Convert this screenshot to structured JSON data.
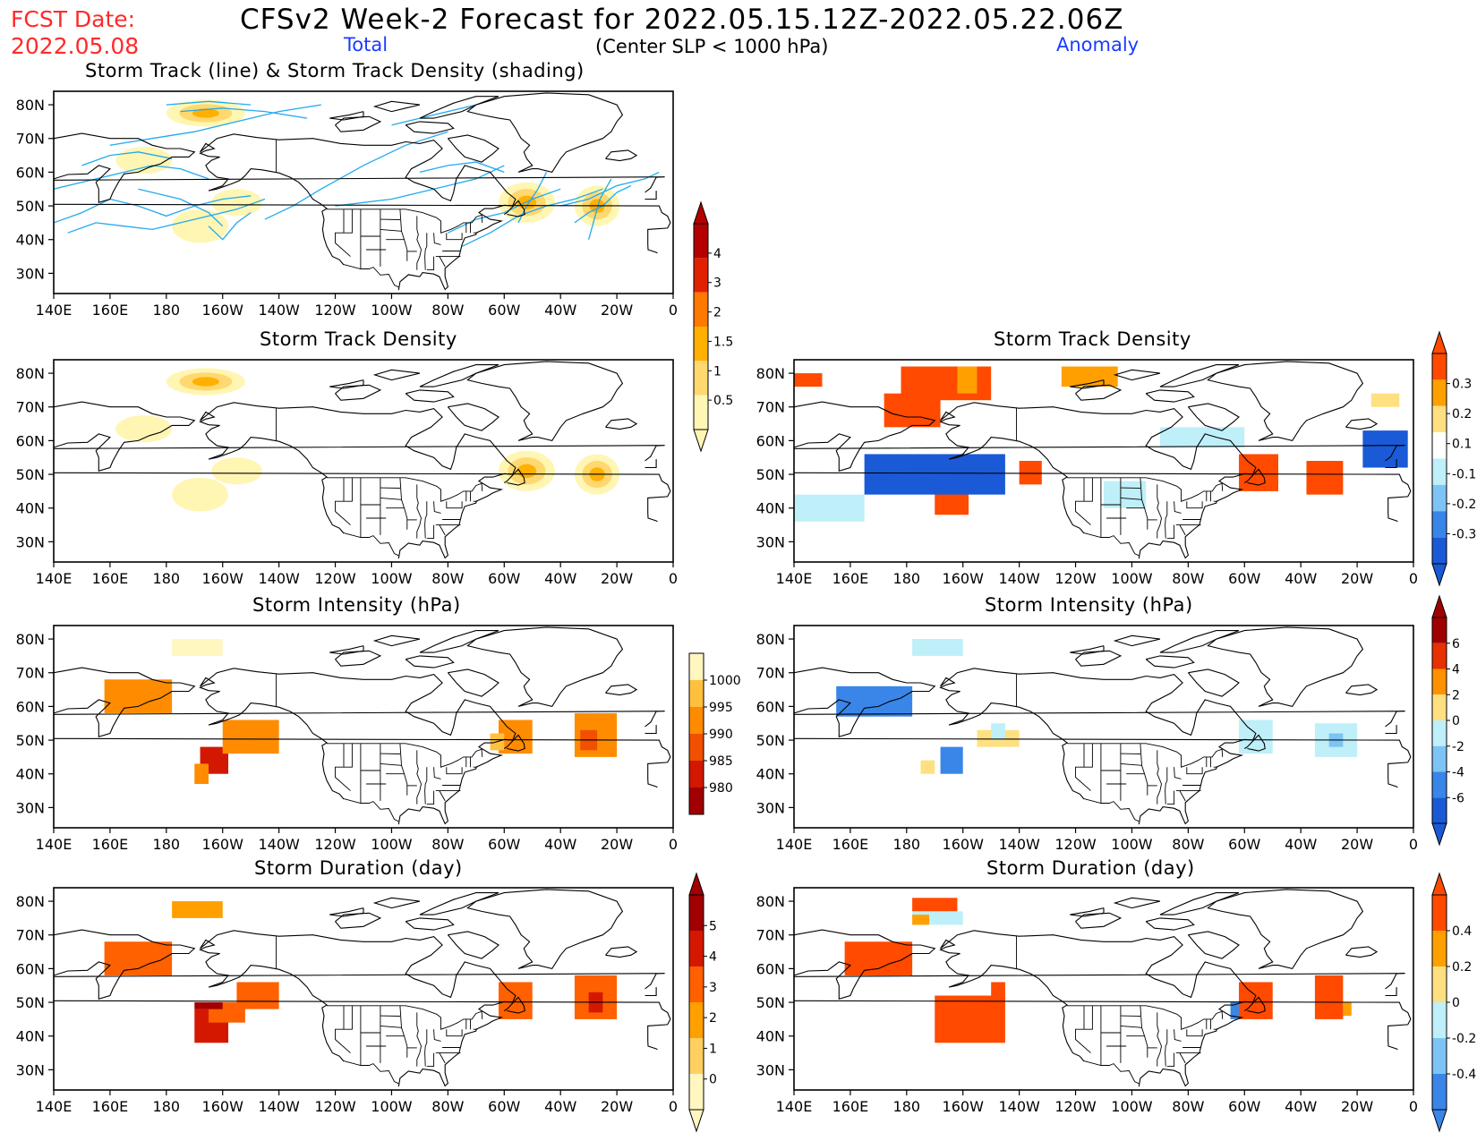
{
  "header": {
    "fcst_label": "FCST Date:",
    "fcst_date": "2022.05.08",
    "title": "CFSv2 Week-2 Forecast for 2022.05.15.12Z-2022.05.22.06Z",
    "total_label": "Total",
    "criterion": "(Center SLP < 1000 hPa)",
    "anomaly_label": "Anomaly"
  },
  "panels": {
    "track_title": "Storm Track (line) & Storm Track Density (shading)",
    "density_title": "Storm Track Density",
    "intensity_title": "Storm Intensity (hPa)",
    "duration_title": "Storm Duration (day)"
  },
  "axes": {
    "lat_labels": [
      "80N",
      "70N",
      "60N",
      "50N",
      "40N",
      "30N"
    ],
    "lon_labels": [
      "140E",
      "160E",
      "180",
      "160W",
      "140W",
      "120W",
      "100W",
      "80W",
      "60W",
      "40W",
      "20W",
      "0"
    ]
  },
  "colorbars": {
    "density_total": {
      "labels": [
        "4",
        "3",
        "2",
        "1.5",
        "1",
        "0.5"
      ],
      "colors": [
        "#b40000",
        "#e12000",
        "#ff7800",
        "#ffb000",
        "#ffd870",
        "#fff6b4"
      ]
    },
    "density_anom": {
      "labels": [
        "0.3",
        "0.2",
        "0.1",
        "-0.1",
        "-0.2",
        "-0.3"
      ],
      "colors": [
        "#ff4a00",
        "#ffa000",
        "#ffe080",
        "#ffffff",
        "#bfeff8",
        "#7cc4f4",
        "#3a86e8",
        "#1a5ad6"
      ]
    },
    "intensity_total": {
      "labels": [
        "1000",
        "995",
        "990",
        "985",
        "980"
      ],
      "colors": [
        "#fff6c0",
        "#ffc040",
        "#ff8c00",
        "#f05000",
        "#d21800",
        "#a00000"
      ]
    },
    "intensity_anom": {
      "labels": [
        "6",
        "4",
        "2",
        "0",
        "-2",
        "-4",
        "-6"
      ],
      "colors": [
        "#a00000",
        "#e83000",
        "#ff9000",
        "#ffe080",
        "#bfeff8",
        "#7cc4f4",
        "#3a86e8",
        "#1a5ad6"
      ]
    },
    "duration_total": {
      "labels": [
        "5",
        "4",
        "3",
        "2",
        "1",
        "0"
      ],
      "colors": [
        "#a00000",
        "#d41800",
        "#ff6000",
        "#ffa000",
        "#ffd060",
        "#fff6c0"
      ]
    },
    "duration_anom": {
      "labels": [
        "0.4",
        "0.2",
        "0",
        "-0.2",
        "-0.4"
      ],
      "colors": [
        "#ff4a00",
        "#ffa000",
        "#ffe080",
        "#bfeff8",
        "#7cc4f4",
        "#3a86e8"
      ]
    }
  }
}
